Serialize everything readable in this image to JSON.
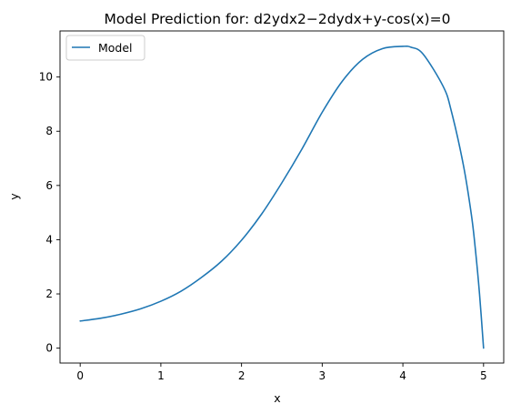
{
  "chart_data": {
    "type": "line",
    "title": "Model Prediction for: d2ydx2−2dydx+y-cos(x)=0",
    "xlabel": "x",
    "ylabel": "y",
    "xlim": [
      -0.25,
      5.25
    ],
    "ylim": [
      -0.55,
      11.7
    ],
    "xticks": [
      "0",
      "1",
      "2",
      "3",
      "4",
      "5"
    ],
    "yticks": [
      "0",
      "2",
      "4",
      "6",
      "8",
      "10"
    ],
    "grid": false,
    "legend": {
      "position": "top-left",
      "entries": [
        "Model"
      ]
    },
    "colors": {
      "series": "#1f77b4",
      "frame": "#000000",
      "legend_border": "#cccccc"
    },
    "series": [
      {
        "name": "Model",
        "x": [
          0,
          0.25,
          0.5,
          0.75,
          1.0,
          1.25,
          1.5,
          1.75,
          2.0,
          2.25,
          2.5,
          2.75,
          3.0,
          3.25,
          3.5,
          3.75,
          4.0,
          4.1,
          4.25,
          4.5,
          4.6,
          4.75,
          4.85,
          4.9,
          4.95,
          5.0
        ],
        "y": [
          1.0,
          1.1,
          1.25,
          1.45,
          1.73,
          2.1,
          2.6,
          3.2,
          3.98,
          4.95,
          6.1,
          7.35,
          8.7,
          9.85,
          10.65,
          11.05,
          11.13,
          11.1,
          10.85,
          9.65,
          8.75,
          6.75,
          4.9,
          3.6,
          2.0,
          0.0
        ]
      }
    ]
  }
}
